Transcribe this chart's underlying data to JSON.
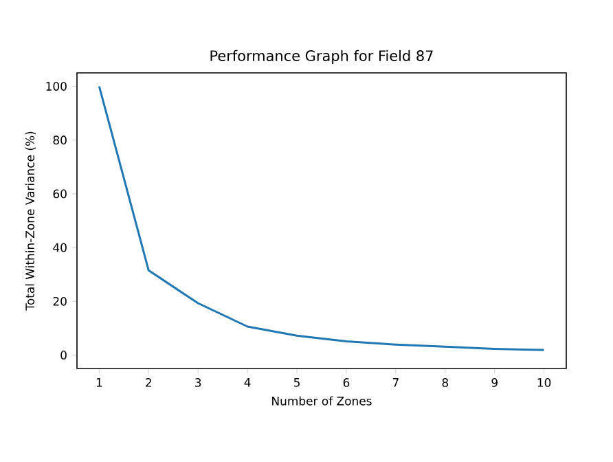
{
  "chart_data": {
    "type": "line",
    "title": "Performance Graph for Field 87",
    "xlabel": "Number of Zones",
    "ylabel": "Total Within-Zone Variance (%)",
    "x": [
      1,
      2,
      3,
      4,
      5,
      6,
      7,
      8,
      9,
      10
    ],
    "series": [
      {
        "color": "#1f77b4",
        "values": [
          100,
          31.5,
          19.3,
          10.6,
          7.2,
          5.1,
          3.9,
          3.1,
          2.3,
          1.9
        ]
      }
    ],
    "xlim": [
      0.55,
      10.45
    ],
    "ylim": [
      -5,
      105
    ],
    "xticks": [
      1,
      2,
      3,
      4,
      5,
      6,
      7,
      8,
      9,
      10
    ],
    "yticks": [
      0,
      20,
      40,
      60,
      80,
      100
    ],
    "grid": false,
    "marker": "none",
    "line_style": "solid"
  }
}
